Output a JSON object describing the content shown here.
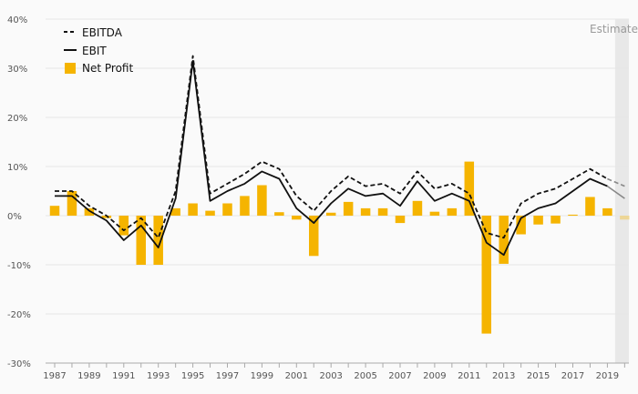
{
  "chart_data": {
    "type": "bar+line",
    "title": "",
    "xlabel": "",
    "ylabel": "",
    "ylim": [
      -30,
      40
    ],
    "y_ticks": [
      40,
      30,
      20,
      10,
      0,
      -10,
      -20,
      -30
    ],
    "y_tick_labels": [
      "40%",
      "30%",
      "20%",
      "10%",
      "0%",
      "-10%",
      "-20%",
      "-30%"
    ],
    "x_tick_labels": [
      "1987",
      "1989",
      "1991",
      "1993",
      "1995",
      "1997",
      "1999",
      "2001",
      "2003",
      "2005",
      "2007",
      "2009",
      "2011",
      "2013",
      "2015",
      "2017",
      "2019"
    ],
    "estimates_label": "Estimates",
    "estimates_from_year": 2020,
    "legend": {
      "placement": "top-left",
      "entries": [
        {
          "label": "EBITDA",
          "style": "dashed",
          "color": "#111111"
        },
        {
          "label": "EBIT",
          "style": "solid",
          "color": "#111111"
        },
        {
          "label": "Net Profit",
          "style": "bar",
          "color": "#f5b400"
        }
      ]
    },
    "years": [
      1987,
      1988,
      1989,
      1990,
      1991,
      1992,
      1993,
      1994,
      1995,
      1996,
      1997,
      1998,
      1999,
      2000,
      2001,
      2002,
      2003,
      2004,
      2005,
      2006,
      2007,
      2008,
      2009,
      2010,
      2011,
      2012,
      2013,
      2014,
      2015,
      2016,
      2017,
      2018,
      2019,
      2020
    ],
    "series": [
      {
        "name": "EBITDA",
        "values": [
          5.0,
          5.0,
          2.0,
          0.0,
          -3.0,
          -0.5,
          -4.5,
          5.0,
          32.5,
          4.5,
          6.5,
          8.5,
          11.0,
          9.5,
          4.0,
          1.0,
          5.0,
          8.0,
          6.0,
          6.5,
          4.5,
          9.0,
          5.5,
          6.5,
          4.5,
          -3.5,
          -4.5,
          2.5,
          4.5,
          5.5,
          7.5,
          9.5,
          7.5,
          6.0
        ]
      },
      {
        "name": "EBIT",
        "values": [
          4.0,
          4.0,
          1.0,
          -1.0,
          -5.0,
          -2.0,
          -6.5,
          3.5,
          31.5,
          3.0,
          5.0,
          6.5,
          9.0,
          7.5,
          1.5,
          -1.5,
          2.5,
          5.5,
          4.0,
          4.5,
          2.0,
          7.0,
          3.0,
          4.5,
          3.0,
          -5.5,
          -8.0,
          -0.5,
          1.5,
          2.5,
          5.0,
          7.5,
          6.0,
          3.5
        ]
      },
      {
        "name": "Net Profit",
        "values": [
          2.0,
          5.0,
          1.5,
          -0.5,
          -4.0,
          -10.0,
          -10.0,
          1.5,
          2.5,
          1.0,
          2.5,
          4.0,
          6.2,
          0.7,
          -0.8,
          -8.2,
          0.6,
          2.8,
          1.5,
          1.5,
          -1.5,
          3.0,
          0.8,
          1.5,
          11.0,
          -24.0,
          -9.8,
          -3.8,
          -1.8,
          -1.6,
          0.2,
          3.8,
          1.5,
          -0.8
        ]
      }
    ],
    "colors": {
      "bar": "#f5b400",
      "line": "#111111",
      "estimates_shade": "#e8e8e8",
      "grid": "#e6e6e6",
      "axis": "#aaaaaa"
    }
  }
}
